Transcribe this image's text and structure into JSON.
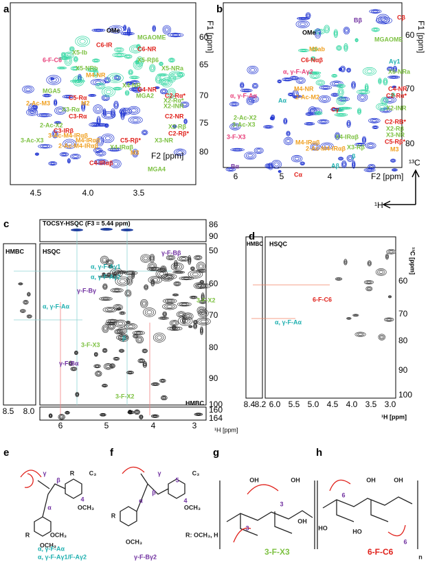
{
  "panels": {
    "a": {
      "letter": "a",
      "x_label": "F2 [ppm]",
      "y_label": "F1 [ppm]",
      "x_ticks": [
        "4.5",
        "4.0",
        "3.5"
      ],
      "y_ticks": [
        "60",
        "65",
        "70",
        "75",
        "80"
      ],
      "labels": [
        {
          "text": "OMe",
          "color": "#000000"
        },
        {
          "text": "MGAOME",
          "color": "#7dc142"
        },
        {
          "text": "C6-IR",
          "color": "#e0201a"
        },
        {
          "text": "C6-NR",
          "color": "#e0201a"
        },
        {
          "text": "6-F-C6",
          "color": "#e8407a"
        },
        {
          "text": "X5-Ib",
          "color": "#7dc142"
        },
        {
          "text": "X5-Rβ6",
          "color": "#7dc142"
        },
        {
          "text": "X5-NRb",
          "color": "#7dc142"
        },
        {
          "text": "X5-NRa",
          "color": "#7dc142"
        },
        {
          "text": "M4-NR",
          "color": "#f0a020"
        },
        {
          "text": "X4-NR",
          "color": "#7dc142"
        },
        {
          "text": "MGA5",
          "color": "#7dc142"
        },
        {
          "text": "MGA2",
          "color": "#7dc142"
        },
        {
          "text": "G4-NR",
          "color": "#e0201a"
        },
        {
          "text": "C2-Rα*",
          "color": "#e0201a"
        },
        {
          "text": "X2-Rα*",
          "color": "#7dc142"
        },
        {
          "text": "X2-INR",
          "color": "#7dc142"
        },
        {
          "text": "C5-Rα",
          "color": "#e0201a"
        },
        {
          "text": "M2",
          "color": "#f0a020"
        },
        {
          "text": "X3-Rα",
          "color": "#7dc142"
        },
        {
          "text": "C2-NR",
          "color": "#e0201a"
        },
        {
          "text": "C3-Rα",
          "color": "#e0201a"
        },
        {
          "text": "2-Ac-M3",
          "color": "#f0a020"
        },
        {
          "text": "2-Ac-X2",
          "color": "#7dc142"
        },
        {
          "text": "C3-IRβ",
          "color": "#e0201a"
        },
        {
          "text": "3-Ac-M4-IRαβ",
          "color": "#f0a020"
        },
        {
          "text": "X2-Rβ",
          "color": "#7dc142"
        },
        {
          "text": "C2-Rβ*",
          "color": "#e0201a"
        },
        {
          "text": "C5-Rβ*",
          "color": "#e0201a"
        },
        {
          "text": "X3-NR",
          "color": "#7dc142"
        },
        {
          "text": "M4-IRαβ",
          "color": "#f0a020"
        },
        {
          "text": "2-Ac-M4-IRαβ",
          "color": "#f0a020"
        },
        {
          "text": "X4-IRαβ",
          "color": "#7dc142"
        },
        {
          "text": "M3",
          "color": "#f0a020"
        },
        {
          "text": "3-Ac-X3",
          "color": "#7dc142"
        },
        {
          "text": "C4-IRαβ",
          "color": "#e0201a"
        },
        {
          "text": "MGA4",
          "color": "#7dc142"
        }
      ]
    },
    "b": {
      "letter": "b",
      "x_label": "F2 [ppm]",
      "y_label": "F1 [ppm]",
      "x_ticks": [
        "6",
        "5",
        "4"
      ],
      "y_ticks": [
        "60",
        "70",
        "80"
      ],
      "axis_c": "¹³C",
      "axis_h": "¹H",
      "labels": [
        {
          "text": "Bβ",
          "color": "#7030a0"
        },
        {
          "text": "Cβ",
          "color": "#e0201a"
        },
        {
          "text": "OMe",
          "color": "#000000"
        },
        {
          "text": "MGAOME",
          "color": "#7dc142"
        },
        {
          "text": "M6ab",
          "color": "#f0a020"
        },
        {
          "text": "C6-Nαβ",
          "color": "#e0201a"
        },
        {
          "text": "Aγ1",
          "color": "#20b0b0"
        },
        {
          "text": "α, γ-F-Aγ2",
          "color": "#e8407a"
        },
        {
          "text": "X6-NRa",
          "color": "#7dc142"
        },
        {
          "text": "M4-NR",
          "color": "#f0a020"
        },
        {
          "text": "C4-NR",
          "color": "#e0201a"
        },
        {
          "text": "2-Ac-M2",
          "color": "#f0a020"
        },
        {
          "text": "C2-Rα*",
          "color": "#e0201a"
        },
        {
          "text": "α, γ-F-Aα",
          "color": "#e8407a"
        },
        {
          "text": "Aα",
          "color": "#20b0b0"
        },
        {
          "text": "X2-INR",
          "color": "#7dc142"
        },
        {
          "text": "Cγ",
          "color": "#e0201a"
        },
        {
          "text": "2-Ac-X2",
          "color": "#7dc142"
        },
        {
          "text": "3-Ac-X3",
          "color": "#7dc142"
        },
        {
          "text": "C2-RB*",
          "color": "#e0201a"
        },
        {
          "text": "X2-Rβ",
          "color": "#7dc142"
        },
        {
          "text": "3-F-X3",
          "color": "#e8407a"
        },
        {
          "text": "X3-NR",
          "color": "#7dc142"
        },
        {
          "text": "X4-IRαβ",
          "color": "#7dc142"
        },
        {
          "text": "M4-IRαβ",
          "color": "#f0a020"
        },
        {
          "text": "C5-Rβ*",
          "color": "#e0201a"
        },
        {
          "text": "2-Ac-M4-IRαβ",
          "color": "#f0a020"
        },
        {
          "text": "X3-Rβ",
          "color": "#7dc142"
        },
        {
          "text": "M3",
          "color": "#f0a020"
        },
        {
          "text": "β",
          "color": "#20b0b0"
        },
        {
          "text": "Aβ",
          "color": "#20b0b0"
        },
        {
          "text": "Bα",
          "color": "#7030a0"
        },
        {
          "text": "Cα",
          "color": "#e0201a"
        }
      ]
    },
    "c": {
      "letter": "c",
      "strip_title": "TOCSY-HSQC (F3 = 5.44 ppm)",
      "hmbc_left": "HMBC",
      "hsqc": "HSQC",
      "hmbc_bottom": "HMBC",
      "x_label": "¹H [ppm]",
      "x_ticks": [
        "6",
        "5",
        "4",
        "3"
      ],
      "left_ticks": [
        "8.5",
        "8.0"
      ],
      "y_ticks": [
        "50",
        "60",
        "70",
        "80",
        "90",
        "100"
      ],
      "top_ticks": [
        "86",
        "90"
      ],
      "bottom_ticks": [
        "160",
        "164"
      ],
      "labels": [
        {
          "text": "γ-F-Bβ",
          "color": "#7030a0"
        },
        {
          "text": "α, γ-F-Aγ1",
          "color": "#20b0b0"
        },
        {
          "text": "α, γ-F-Aγ2",
          "color": "#20b0b0"
        },
        {
          "text": "γ-F-Bγ",
          "color": "#7030a0"
        },
        {
          "text": "3-F-X2",
          "color": "#7dc142"
        },
        {
          "text": "α, γ-F-Aα",
          "color": "#20b0b0"
        },
        {
          "text": "β",
          "color": "#20b0b0"
        },
        {
          "text": "3-F-X3",
          "color": "#7dc142"
        },
        {
          "text": "γ-F-Bα",
          "color": "#7030a0"
        },
        {
          "text": "3-F-X2",
          "color": "#7dc142"
        }
      ]
    },
    "d": {
      "letter": "d",
      "hmbc": "HMBC",
      "hsqc": "HSQC",
      "y_label": "¹³C [ppm]",
      "x_label": "¹H [ppm]",
      "x_ticks": [
        "6.0",
        "5.5",
        "5.0",
        "4.5",
        "4.0",
        "3.5",
        "3.0"
      ],
      "left_ticks": [
        "8.4",
        "8.2"
      ],
      "y_ticks": [
        "60",
        "70",
        "80",
        "90",
        "100"
      ],
      "labels": [
        {
          "text": "6-F-C6",
          "color": "#e0201a"
        },
        {
          "text": "α, γ-F-Aα",
          "color": "#20b0b0"
        }
      ]
    }
  },
  "structures": [
    {
      "letter": "e",
      "atoms": [
        "R",
        "C₃",
        "OCH₃",
        "α",
        "β",
        "γ",
        "4",
        "R",
        "OCH₃",
        "OCH₃"
      ],
      "captions": [
        "α, γ-F-Aα",
        "α, γ-F-Aγ1/F-Aγ2"
      ]
    },
    {
      "letter": "f",
      "atoms": [
        "γ",
        "C₃",
        "β",
        "5",
        "α",
        "4",
        "R",
        "OCH₃",
        "OCH₃"
      ],
      "captions": [
        "γ-F-Bγ2",
        "R: OCH₃, H"
      ]
    },
    {
      "letter": "g",
      "atoms": [
        "3",
        "3",
        "OH",
        "OH",
        "OH"
      ],
      "captions": [
        "3-F-X3"
      ]
    },
    {
      "letter": "h",
      "atoms": [
        "6",
        "6",
        "HO",
        "HO",
        "OH",
        "OH",
        "n"
      ],
      "captions": [
        "6-F-C6"
      ]
    }
  ]
}
